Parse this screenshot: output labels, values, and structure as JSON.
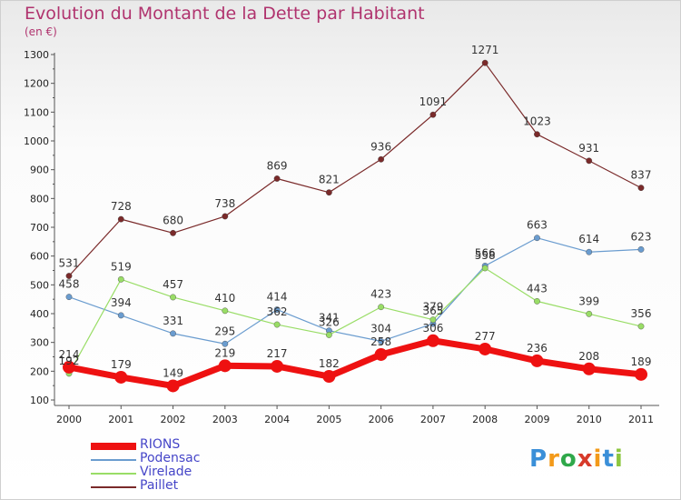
{
  "chart_data": {
    "type": "line",
    "title": "Evolution du Montant de la Dette par Habitant",
    "subtitle": "(en €)",
    "x": [
      "2000",
      "2001",
      "2002",
      "2003",
      "2004",
      "2005",
      "2006",
      "2007",
      "2008",
      "2009",
      "2010",
      "2011"
    ],
    "ylim": [
      100,
      1300
    ],
    "yticks": [
      100,
      200,
      300,
      400,
      500,
      600,
      700,
      800,
      900,
      1000,
      1100,
      1200,
      1300
    ],
    "grid": false,
    "legend": "bottom-left",
    "series": [
      {
        "name": "RIONS",
        "color": "#ee1111",
        "values": [
          214,
          179,
          149,
          219,
          217,
          182,
          258,
          306,
          277,
          236,
          208,
          189
        ]
      },
      {
        "name": "Podensac",
        "color": "#6a9ccf",
        "values": [
          458,
          394,
          331,
          295,
          414,
          341,
          304,
          365,
          566,
          663,
          614,
          623
        ]
      },
      {
        "name": "Virelade",
        "color": "#99dd66",
        "values": [
          192,
          519,
          457,
          410,
          362,
          326,
          423,
          379,
          558,
          443,
          399,
          356
        ]
      },
      {
        "name": "Paillet",
        "color": "#7a2a2a",
        "values": [
          531,
          728,
          680,
          738,
          869,
          821,
          936,
          1091,
          1271,
          1023,
          931,
          837
        ]
      }
    ]
  },
  "logo": {
    "text": "Proxiti",
    "letters": [
      "P",
      "r",
      "o",
      "x",
      "i",
      "t",
      "i"
    ],
    "colors": [
      "#3a8fd8",
      "#f39a1a",
      "#2fa84a",
      "#d73a2a",
      "#f39a1a",
      "#3a8fd8",
      "#8cc63f"
    ]
  }
}
